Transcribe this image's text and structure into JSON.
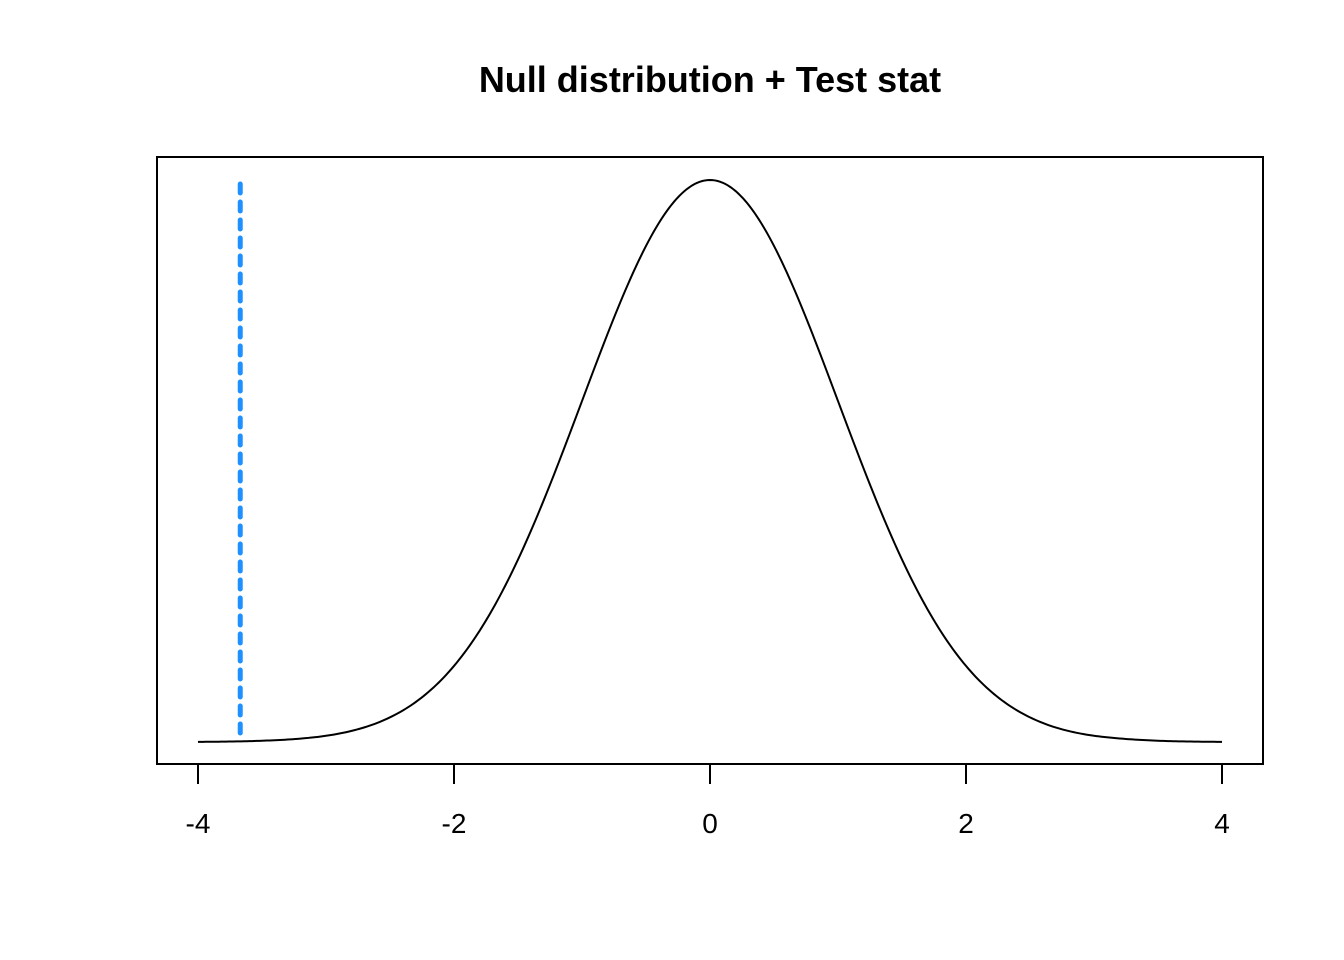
{
  "chart_data": {
    "type": "line",
    "title": "Null distribution + Test stat",
    "xlabel": "",
    "ylabel": "",
    "xlim": [
      -4,
      4
    ],
    "x_ticks": [
      -4,
      -2,
      0,
      2,
      4
    ],
    "x_tick_labels": [
      "-4",
      "-2",
      "0",
      "2",
      "4"
    ],
    "y_axis_shown": false,
    "grid": false,
    "series": [
      {
        "kind": "density-curve",
        "distribution": "standard normal",
        "x": [
          -4,
          -3.5,
          -3,
          -2.5,
          -2,
          -1.5,
          -1,
          -0.5,
          0,
          0.5,
          1,
          1.5,
          2,
          2.5,
          3,
          3.5,
          4
        ],
        "y": [
          0.0001,
          0.0009,
          0.0044,
          0.0175,
          0.054,
          0.1295,
          0.242,
          0.3521,
          0.3989,
          0.3521,
          0.242,
          0.1295,
          0.054,
          0.0175,
          0.0044,
          0.0009,
          0.0001
        ],
        "color": "#000000"
      }
    ],
    "reference_lines": [
      {
        "kind": "vertical",
        "x": -3.67,
        "style": "dotted",
        "color": "#1E90FF"
      }
    ]
  }
}
